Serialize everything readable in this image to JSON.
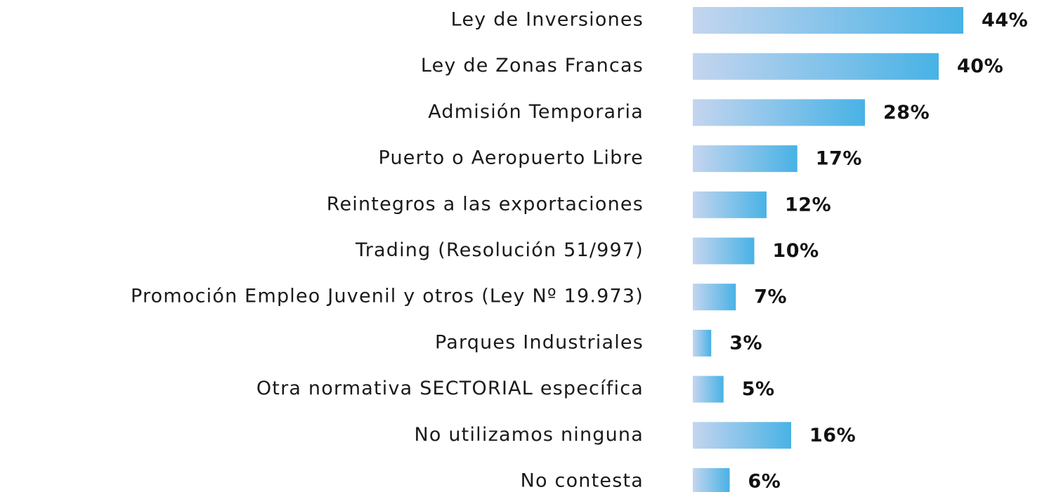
{
  "chart_data": {
    "type": "bar",
    "orientation": "horizontal",
    "categories": [
      "Ley de Inversiones",
      "Ley de Zonas Francas",
      "Admisión Temporaria",
      "Puerto o Aeropuerto Libre",
      "Reintegros a las exportaciones",
      "Trading (Resolución 51/997)",
      "Promoción Empleo Juvenil y otros (Ley Nº 19.973)",
      "Parques Industriales",
      "Otra normativa SECTORIAL específica",
      "No utilizamos ninguna",
      "No contesta"
    ],
    "values": [
      44,
      40,
      28,
      17,
      12,
      10,
      7,
      3,
      5,
      16,
      6
    ],
    "value_labels": [
      "44%",
      "40%",
      "28%",
      "17%",
      "12%",
      "10%",
      "7%",
      "3%",
      "5%",
      "16%",
      "6%"
    ],
    "gradient": [
      "#c4d5ef",
      "#48b2e5"
    ]
  }
}
